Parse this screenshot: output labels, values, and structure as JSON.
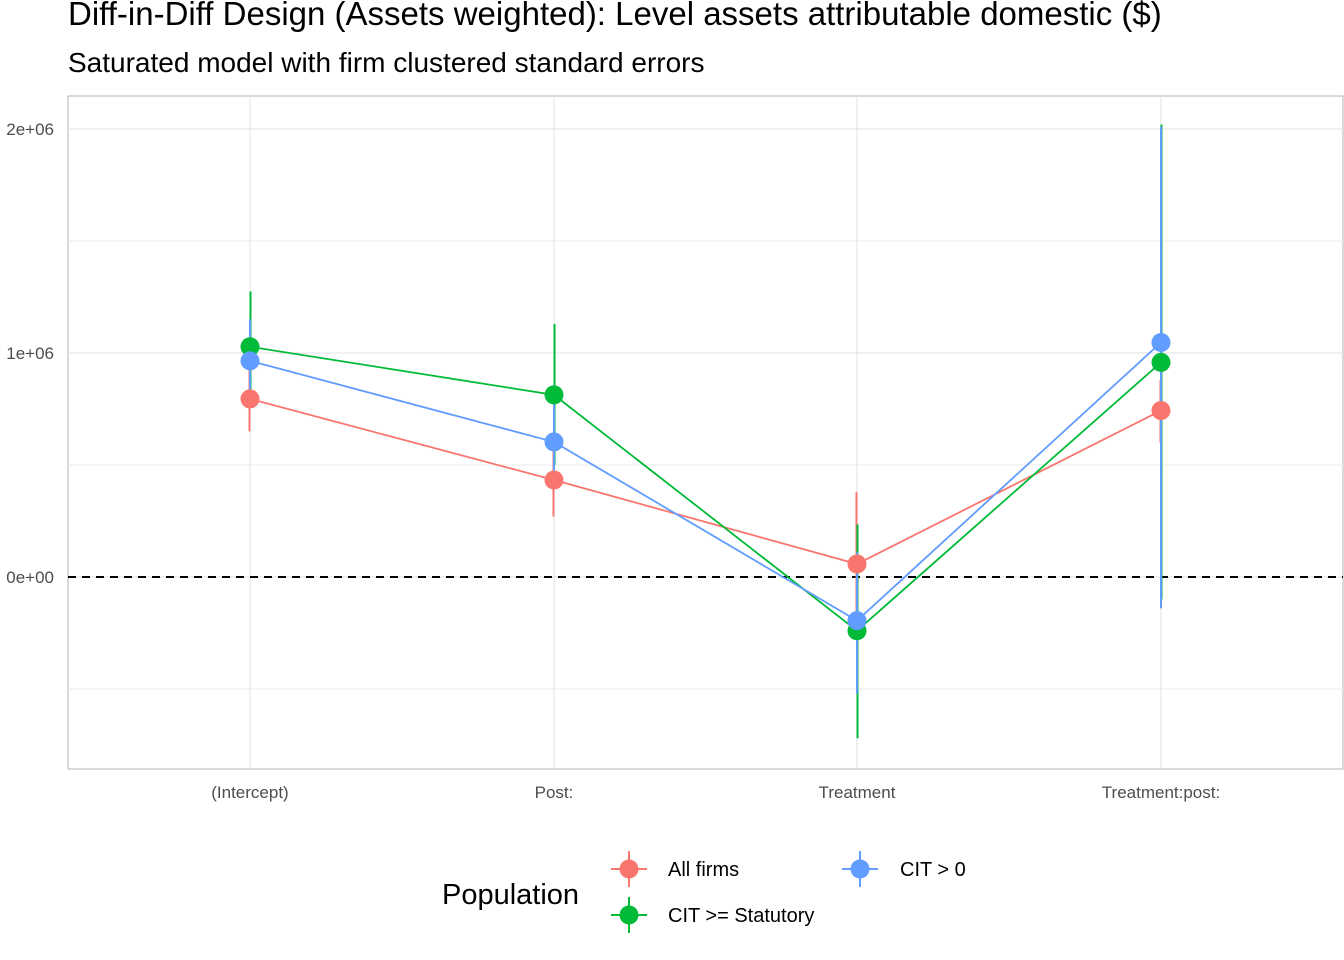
{
  "chart_data": {
    "type": "line",
    "title": "Diff-in-Diff Design (Assets weighted): Level assets attributable domestic  ($)",
    "subtitle": "Saturated model with firm clustered standard errors",
    "categories": [
      "(Intercept)",
      "Post:",
      "Treatment",
      "Treatment:post:"
    ],
    "ylim": [
      -850000,
      2150000
    ],
    "y_ticks": [
      0,
      1000000,
      2000000
    ],
    "y_tick_labels": [
      "0e+00",
      "1e+06",
      "2e+06"
    ],
    "y_minor_gridlines": [
      -500000,
      500000,
      1500000
    ],
    "reference_line": {
      "y": 0,
      "style": "dashed"
    },
    "grid": true,
    "legend": {
      "title": "Population",
      "placement": "bottom"
    },
    "series": [
      {
        "name": "All firms",
        "color": "#F8766D",
        "values": [
          795000,
          433000,
          58000,
          743000
        ],
        "ci_low": [
          650000,
          270000,
          -200000,
          600000
        ],
        "ci_high": [
          940000,
          600000,
          380000,
          880000
        ]
      },
      {
        "name": "CIT >= Statutory",
        "color": "#00BA38",
        "values": [
          1028000,
          813000,
          -240000,
          958000
        ],
        "ci_low": [
          790000,
          500000,
          -720000,
          -100000
        ],
        "ci_high": [
          1275000,
          1130000,
          235000,
          2020000
        ]
      },
      {
        "name": "CIT > 0",
        "color": "#619CFF",
        "values": [
          965000,
          603000,
          -195000,
          1047000
        ],
        "ci_low": [
          780000,
          430000,
          -520000,
          -140000
        ],
        "ci_high": [
          1150000,
          780000,
          110000,
          2010000
        ]
      }
    ]
  }
}
